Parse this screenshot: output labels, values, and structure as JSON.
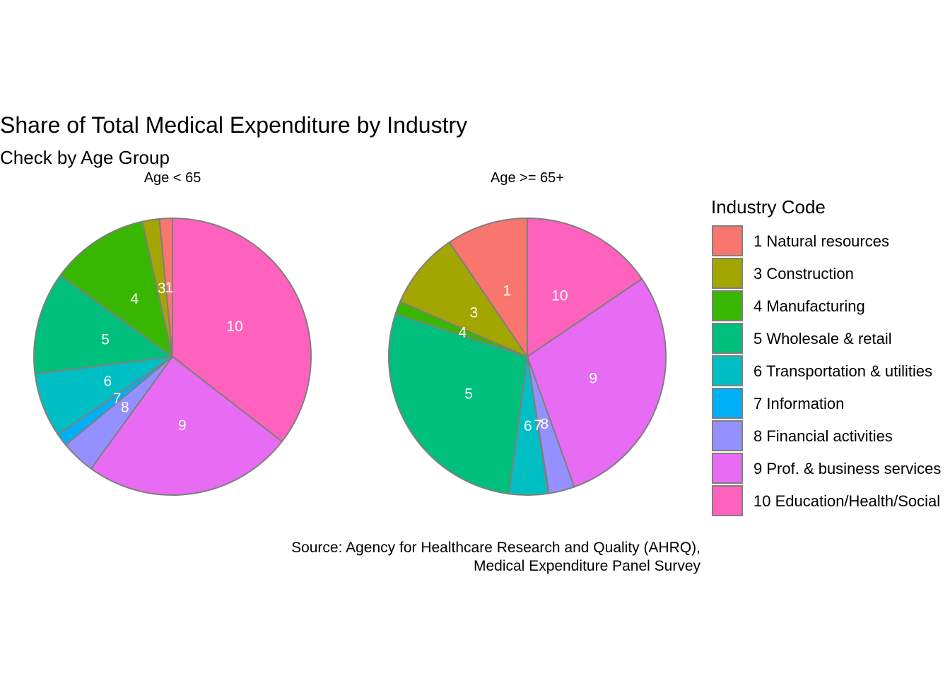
{
  "chart_data": {
    "type": "pie",
    "title": "Share of Total Medical Expenditure by Industry",
    "subtitle": "Check by Age Group",
    "caption": [
      "Source: Agency for Healthcare Research and Quality (AHRQ),",
      "Medical Expenditure Panel Survey"
    ],
    "legend": {
      "title": "Industry Code",
      "placement": "right",
      "entries": [
        {
          "code": "1",
          "label": "1 Natural resources",
          "color": "#F8766D"
        },
        {
          "code": "3",
          "label": "3 Construction",
          "color": "#A3A500"
        },
        {
          "code": "4",
          "label": "4 Manufacturing",
          "color": "#39B600"
        },
        {
          "code": "5",
          "label": "5 Wholesale & retail",
          "color": "#00BF7D"
        },
        {
          "code": "6",
          "label": "6 Transportation & utilities",
          "color": "#00BFC4"
        },
        {
          "code": "7",
          "label": "7 Information",
          "color": "#00B0F6"
        },
        {
          "code": "8",
          "label": "8 Financial activities",
          "color": "#9590FF"
        },
        {
          "code": "9",
          "label": "9 Prof. & business services",
          "color": "#E76BF3"
        },
        {
          "code": "10",
          "label": "10 Education/Health/Social",
          "color": "#FF62BC"
        }
      ]
    },
    "facets": [
      {
        "label": "Age < 65",
        "slices": [
          {
            "code": "10",
            "value": 35.5
          },
          {
            "code": "9",
            "value": 24.5
          },
          {
            "code": "8",
            "value": 4.0
          },
          {
            "code": "7",
            "value": 1.5
          },
          {
            "code": "6",
            "value": 7.5
          },
          {
            "code": "5",
            "value": 12.0
          },
          {
            "code": "4",
            "value": 11.5
          },
          {
            "code": "3",
            "value": 2.0
          },
          {
            "code": "1",
            "value": 1.5
          }
        ]
      },
      {
        "label": "Age >= 65+",
        "slices": [
          {
            "code": "10",
            "value": 15.5
          },
          {
            "code": "9",
            "value": 29.0
          },
          {
            "code": "8",
            "value": 3.0
          },
          {
            "code": "7",
            "value": 0.1
          },
          {
            "code": "6",
            "value": 4.5
          },
          {
            "code": "5",
            "value": 27.9
          },
          {
            "code": "4",
            "value": 1.5
          },
          {
            "code": "3",
            "value": 9.0
          },
          {
            "code": "1",
            "value": 9.5
          }
        ]
      }
    ]
  }
}
